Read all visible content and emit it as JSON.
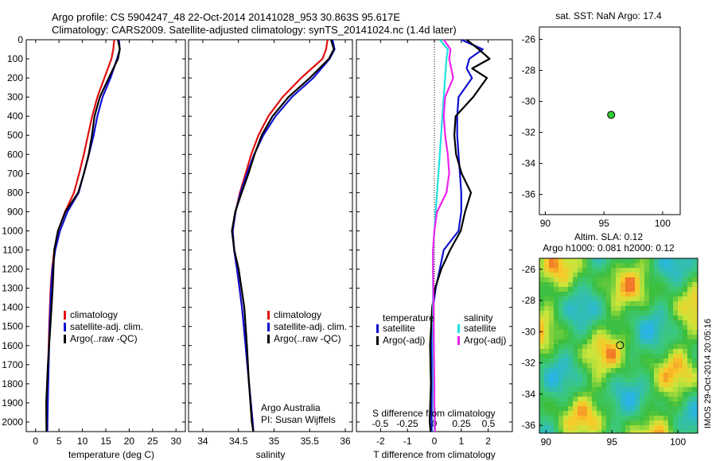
{
  "header": {
    "line1": "Argo profile: CS 5904247_48 22-Oct-2014 20141028_953 30.863S 95.617E",
    "line2": "Climatology: CARS2009. Satellite-adjusted climatology: synTS_20141024.nc (1.4d later)"
  },
  "colors": {
    "climatology": "#e01010",
    "satellite": "#1010d0",
    "argo": "#000000",
    "sat_salinity": "#20e0e0",
    "argo_salinity": "#ee22ee",
    "float_marker": "#33cc33"
  },
  "chart_data": [
    {
      "type": "line",
      "xlabel": "temperature (deg C)",
      "ylabel": "",
      "xlim": [
        -2,
        32
      ],
      "ylim": [
        2050,
        0
      ],
      "xticks": [
        "0",
        "5",
        "10",
        "15",
        "20",
        "25",
        "30"
      ],
      "yticks": [
        "0",
        "100",
        "200",
        "300",
        "400",
        "500",
        "600",
        "700",
        "800",
        "900",
        "1000",
        "1100",
        "1200",
        "1300",
        "1400",
        "1500",
        "1600",
        "1700",
        "1800",
        "1900",
        "2000"
      ],
      "legend": [
        "climatology",
        "satellite-adj. clim.",
        "Argo(..raw -QC)"
      ],
      "series": [
        {
          "name": "climatology",
          "y": [
            0,
            50,
            100,
            200,
            300,
            400,
            500,
            600,
            700,
            800,
            900,
            1000,
            1100,
            1200,
            1300,
            1500,
            1700,
            1900,
            2050
          ],
          "x": [
            16.8,
            16.6,
            16.2,
            14.7,
            13.2,
            12.1,
            11.2,
            10.3,
            9.3,
            8.2,
            6.3,
            4.8,
            4.0,
            3.5,
            3.2,
            2.9,
            2.7,
            2.5,
            2.4
          ]
        },
        {
          "name": "satellite-adj. clim.",
          "y": [
            0,
            50,
            100,
            200,
            300,
            400,
            500,
            600,
            700,
            800,
            900,
            1000,
            1100,
            1200,
            1300,
            1500,
            1700,
            1900,
            2050
          ],
          "x": [
            17.8,
            18.0,
            17.4,
            16.0,
            14.3,
            13.2,
            12.4,
            11.4,
            10.3,
            9.2,
            6.8,
            5.2,
            4.2,
            3.6,
            3.3,
            3.0,
            2.8,
            2.6,
            2.5
          ]
        },
        {
          "name": "Argo(..raw -QC)",
          "y": [
            0,
            50,
            100,
            200,
            300,
            400,
            500,
            600,
            700,
            800,
            900,
            1000,
            1100,
            1200,
            1300,
            1500,
            1700,
            1900,
            2050
          ],
          "x": [
            17.6,
            17.7,
            17.3,
            15.6,
            14.0,
            12.9,
            12.1,
            11.1,
            10.0,
            9.0,
            6.6,
            5.1,
            4.1,
            3.6,
            3.3,
            3.0,
            2.8,
            2.6,
            2.5
          ]
        }
      ]
    },
    {
      "type": "line",
      "xlabel": "salinity",
      "xlim": [
        33.8,
        36.1
      ],
      "ylim": [
        2050,
        0
      ],
      "xticks": [
        "34",
        "34.5",
        "35",
        "35.5",
        "36"
      ],
      "legend": [
        "climatology",
        "satellite-adj. clim.",
        "Argo(..raw -QC)"
      ],
      "annotation": [
        "Argo Australia",
        "PI: Susan Wijffels"
      ],
      "series": [
        {
          "name": "climatology",
          "y": [
            0,
            50,
            100,
            200,
            300,
            400,
            500,
            600,
            700,
            800,
            900,
            1000,
            1100,
            1200,
            1400,
            1600,
            1800,
            2000,
            2050
          ],
          "x": [
            35.75,
            35.73,
            35.68,
            35.38,
            35.12,
            34.92,
            34.78,
            34.68,
            34.6,
            34.52,
            34.46,
            34.42,
            34.44,
            34.48,
            34.55,
            34.6,
            34.65,
            34.7,
            34.71
          ]
        },
        {
          "name": "satellite-adj. clim.",
          "y": [
            0,
            50,
            100,
            200,
            300,
            400,
            500,
            600,
            700,
            800,
            900,
            1000,
            1100,
            1200,
            1400,
            1600,
            1800,
            2000,
            2050
          ],
          "x": [
            35.82,
            35.85,
            35.78,
            35.55,
            35.25,
            35.02,
            34.85,
            34.72,
            34.62,
            34.53,
            34.46,
            34.42,
            34.44,
            34.48,
            34.55,
            34.6,
            34.65,
            34.7,
            34.71
          ]
        },
        {
          "name": "Argo(..raw -QC)",
          "y": [
            0,
            50,
            100,
            200,
            300,
            400,
            500,
            600,
            700,
            800,
            900,
            1000,
            1100,
            1200,
            1400,
            1600,
            1800,
            2000,
            2050
          ],
          "x": [
            35.8,
            35.82,
            35.75,
            35.5,
            35.22,
            35.0,
            34.83,
            34.71,
            34.62,
            34.54,
            34.47,
            34.43,
            34.45,
            34.49,
            34.56,
            34.61,
            34.66,
            34.71,
            34.72
          ]
        }
      ]
    },
    {
      "type": "line",
      "xlabel": "T difference from climatology",
      "top_label": "S difference from climatology",
      "xlim": [
        -2.9,
        2.9
      ],
      "ylim": [
        2050,
        0
      ],
      "xticks": [
        "-2",
        "-1",
        "0",
        "1",
        "2"
      ],
      "top_ticks": [
        "-0.5",
        "-0.25",
        "0",
        "0.25",
        "0.5"
      ],
      "legend_titles": [
        "temperature",
        "salinity"
      ],
      "legend": [
        "satellite",
        "Argo(-adj)",
        "satellite",
        "Argo(-adj)"
      ],
      "series": [
        {
          "name": "satellite",
          "y": [
            0,
            50,
            100,
            150,
            200,
            300,
            400,
            500,
            600,
            700,
            800,
            900,
            1000,
            1100,
            1200,
            1300,
            1400,
            1600,
            1800,
            2000,
            2050
          ],
          "x": [
            1.0,
            1.8,
            1.3,
            1.2,
            1.4,
            0.9,
            0.85,
            0.85,
            0.9,
            0.95,
            1.0,
            1.0,
            0.9,
            0.35,
            0.2,
            0.05,
            -0.05,
            -0.1,
            -0.1,
            -0.1,
            -0.1
          ]
        },
        {
          "name": "Argo(-adj)",
          "y": [
            0,
            50,
            100,
            150,
            200,
            300,
            400,
            500,
            600,
            700,
            800,
            900,
            1000,
            1100,
            1200,
            1300,
            1400,
            1600,
            1800,
            2000,
            2050
          ],
          "x": [
            1.2,
            1.6,
            2.0,
            1.4,
            2.0,
            1.5,
            0.8,
            0.7,
            0.75,
            1.0,
            1.4,
            1.2,
            1.0,
            0.55,
            0.2,
            0.0,
            -0.05,
            -0.1,
            -0.1,
            -0.2,
            -0.2
          ]
        },
        {
          "name": "satellite",
          "y": [
            0,
            50,
            100,
            200,
            300,
            400,
            500,
            600,
            700,
            800,
            900,
            1000,
            1100,
            1200,
            1400,
            1600,
            1800,
            1900,
            2000,
            2050
          ],
          "x": [
            0.2,
            0.5,
            0.45,
            0.4,
            0.35,
            0.3,
            0.25,
            0.2,
            0.15,
            0.1,
            0.05,
            0.0,
            -0.05,
            -0.05,
            -0.05,
            -0.05,
            -0.03,
            -0.02,
            0.0,
            0.0
          ]
        },
        {
          "name": "Argo(-adj)",
          "y": [
            0,
            50,
            100,
            200,
            300,
            400,
            500,
            600,
            700,
            800,
            900,
            1000,
            1100,
            1200,
            1400,
            1600,
            1800,
            1900,
            2000,
            2050
          ],
          "x": [
            0.35,
            0.6,
            0.55,
            0.7,
            0.4,
            0.35,
            0.4,
            0.5,
            0.55,
            0.45,
            0.1,
            0.0,
            -0.05,
            -0.05,
            -0.03,
            -0.02,
            0.0,
            0.0,
            0.02,
            0.02
          ]
        }
      ]
    },
    {
      "type": "scatter",
      "title": "sat. SST: NaN Argo: 17.4",
      "xlim": [
        89.5,
        101.5
      ],
      "ylim": [
        -37.3,
        -25.2
      ],
      "xticks": [
        "90",
        "95",
        "100"
      ],
      "yticks": [
        "-26",
        "-28",
        "-30",
        "-32",
        "-34",
        "-36"
      ],
      "points": [
        {
          "x": 95.617,
          "y": -30.863
        }
      ]
    },
    {
      "type": "heatmap",
      "title_lines": [
        "Altim. SLA: 0.12",
        "Argo h1000: 0.081 h2000: 0.12"
      ],
      "xlim": [
        89.5,
        101.5
      ],
      "ylim": [
        -36.5,
        -25.3
      ],
      "xticks": [
        "90",
        "95",
        "100"
      ],
      "yticks": [
        "-26",
        "-28",
        "-30",
        "-32",
        "-34",
        "-36"
      ],
      "points": [
        {
          "x": 95.617,
          "y": -30.863
        }
      ],
      "side_label": "IMOS 29-Oct-2014 20:05:16"
    }
  ]
}
